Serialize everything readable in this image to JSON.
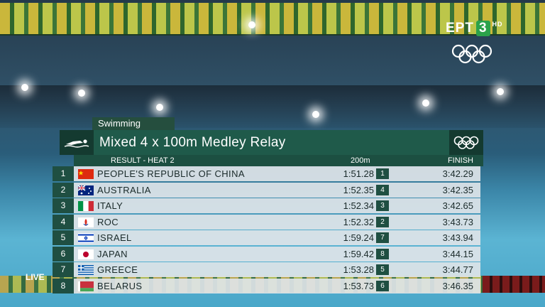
{
  "broadcaster": {
    "name": "ΕΡΤ",
    "channel": "3",
    "quality": "HD"
  },
  "live_label": "LIVE",
  "graphic": {
    "sport": "Swimming",
    "event": "Mixed 4 x 100m Medley Relay",
    "subtitle": "RESULT - HEAT 2",
    "col_split": "200m",
    "col_finish": "FINISH",
    "rows": [
      {
        "rank": "1",
        "country": "PEOPLE'S REPUBLIC OF CHINA",
        "flag": "china-flag-icon",
        "split": "1:51.28",
        "split_rank": "1",
        "finish": "3:42.29"
      },
      {
        "rank": "2",
        "country": "AUSTRALIA",
        "flag": "australia-flag-icon",
        "split": "1:52.35",
        "split_rank": "4",
        "finish": "3:42.35"
      },
      {
        "rank": "3",
        "country": "ITALY",
        "flag": "italy-flag-icon",
        "split": "1:52.34",
        "split_rank": "3",
        "finish": "3:42.65"
      },
      {
        "rank": "4",
        "country": "ROC",
        "flag": "roc-flag-icon",
        "split": "1:52.32",
        "split_rank": "2",
        "finish": "3:43.73"
      },
      {
        "rank": "5",
        "country": "ISRAEL",
        "flag": "israel-flag-icon",
        "split": "1:59.24",
        "split_rank": "7",
        "finish": "3:43.94"
      },
      {
        "rank": "6",
        "country": "JAPAN",
        "flag": "japan-flag-icon",
        "split": "1:59.42",
        "split_rank": "8",
        "finish": "3:44.15"
      },
      {
        "rank": "7",
        "country": "GREECE",
        "flag": "greece-flag-icon",
        "split": "1:53.28",
        "split_rank": "5",
        "finish": "3:44.77"
      },
      {
        "rank": "8",
        "country": "BELARUS",
        "flag": "belarus-flag-icon",
        "split": "1:53.73",
        "split_rank": "6",
        "finish": "3:46.35"
      }
    ]
  },
  "colors": {
    "accent": "#1f5a4a",
    "dark": "#143a30",
    "row_bg": "#dee4e8",
    "ert_green": "#2ba24a"
  }
}
